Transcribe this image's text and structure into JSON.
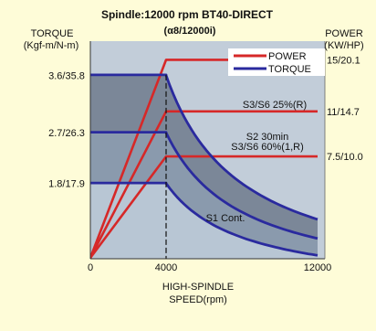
{
  "chart_data": {
    "type": "line",
    "title": "Spindle:12000 rpm BT40-DIRECT",
    "subtitle": "(α8/12000i)",
    "left_axis": {
      "title_line1": "TORQUE",
      "title_line2": "(Kgf-m/N-m)"
    },
    "right_axis": {
      "title_line1": "POWER",
      "title_line2": "(KW/HP)"
    },
    "xlabel_line1": "HIGH-SPINDLE",
    "xlabel_line2": "SPEED(rpm)",
    "x_ticks": [
      {
        "value": 0,
        "label": "0"
      },
      {
        "value": 4000,
        "label": "4000"
      },
      {
        "value": 12000,
        "label": "12000"
      }
    ],
    "xlim": [
      0,
      12000
    ],
    "torque_ticks": [
      {
        "value": 35.8,
        "label": "3.6/35.8"
      },
      {
        "value": 26.3,
        "label": "2.7/26.3"
      },
      {
        "value": 17.9,
        "label": "1.8/17.9"
      }
    ],
    "torque_lim": [
      0,
      40
    ],
    "power_ticks": [
      {
        "value": 15,
        "label": "15/20.1"
      },
      {
        "value": 11,
        "label": "11/14.7"
      },
      {
        "value": 7.5,
        "label": "7.5/10.0"
      }
    ],
    "power_lim": [
      0,
      17
    ],
    "base_speed": 4000,
    "legend": [
      {
        "label": "POWER",
        "color": "#d62828"
      },
      {
        "label": "TORQUE",
        "color": "#2a2a9e"
      }
    ],
    "legend_position": "top-right",
    "series": [
      {
        "name": "S3/S6 25%(R)",
        "power_kw": 15,
        "torque_nm": 35.8
      },
      {
        "name": "S2 30min\nS3/S6 60%(1,R)",
        "power_kw": 11,
        "torque_nm": 26.3
      },
      {
        "name": "S1 Cont.",
        "power_kw": 7.5,
        "torque_nm": 17.9
      }
    ],
    "colors": {
      "power": "#d62828",
      "torque": "#2a2a9e",
      "plot_bg": "#c2cdd9",
      "band_s1": "#b8c6d4",
      "band_s2": "#8a9aad",
      "band_s3": "#7b8798"
    }
  }
}
